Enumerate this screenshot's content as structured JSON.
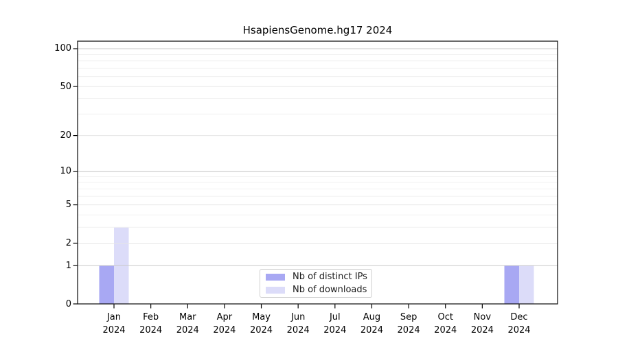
{
  "chart_data": {
    "type": "bar",
    "title": "HsapiensGenome.hg17 2024",
    "categories": [
      "Jan",
      "Feb",
      "Mar",
      "Apr",
      "May",
      "Jun",
      "Jul",
      "Aug",
      "Sep",
      "Oct",
      "Nov",
      "Dec"
    ],
    "year_label": "2024",
    "series": [
      {
        "name": "Nb of distinct IPs",
        "color": "#a8a8f3",
        "values": [
          1,
          0,
          0,
          0,
          0,
          0,
          0,
          0,
          0,
          0,
          0,
          1
        ]
      },
      {
        "name": "Nb of downloads",
        "color": "#dcdcf9",
        "values": [
          3,
          0,
          0,
          0,
          0,
          0,
          0,
          0,
          0,
          0,
          0,
          1
        ]
      }
    ],
    "xlabel": "",
    "ylabel": "",
    "yscale": "log1p",
    "ylim": [
      0,
      115
    ],
    "yticks": [
      0,
      1,
      2,
      5,
      10,
      20,
      50,
      100
    ],
    "minor_yticks": [
      3,
      4,
      6,
      7,
      8,
      9,
      30,
      40,
      60,
      70,
      80,
      90
    ],
    "grid": true,
    "legend_position": "lower center",
    "colors": {
      "spine": "#1a1a1a",
      "grid_decade": "#c8c8c8",
      "grid_major": "#e6e6e6",
      "grid_minor": "#f1f1f1",
      "legend_border": "#cfcfcf"
    }
  }
}
